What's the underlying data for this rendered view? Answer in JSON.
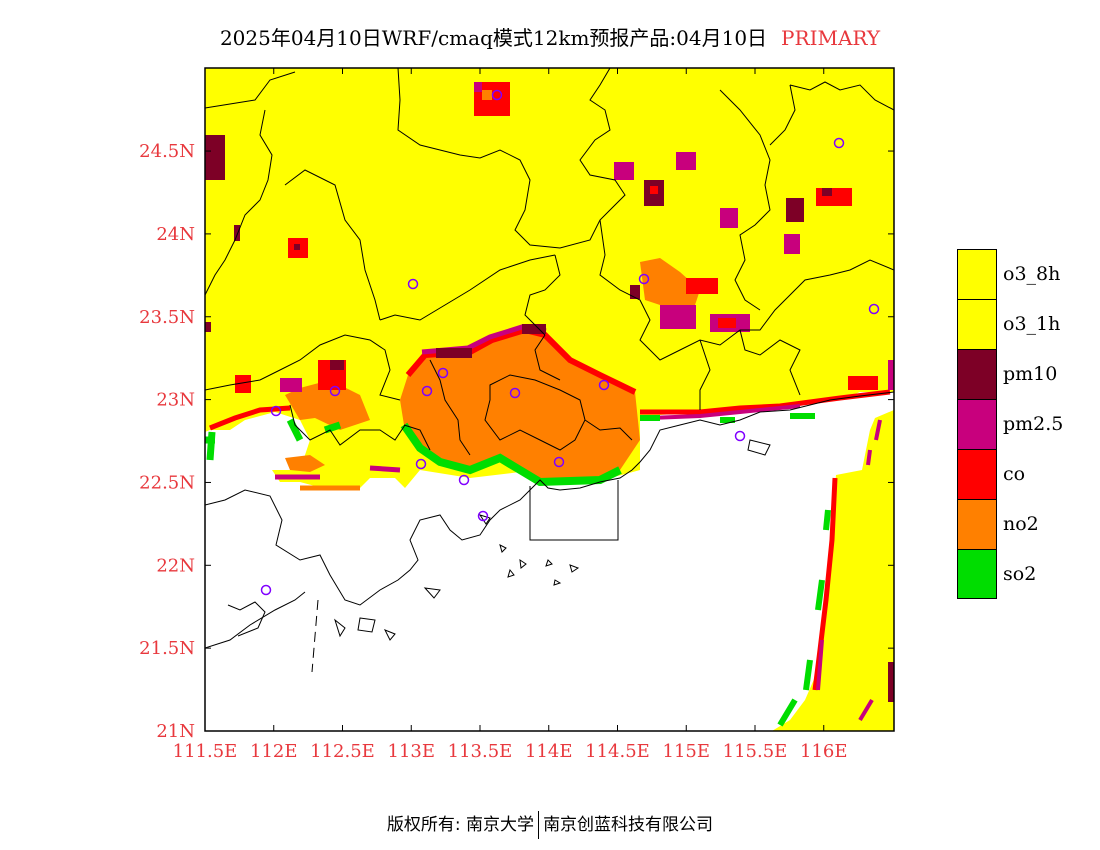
{
  "title": {
    "main": "2025年04月10日WRF/cmaq模式12km预报产品:04月10日",
    "tag": "PRIMARY"
  },
  "axes": {
    "lon_ticks": [
      "111.5E",
      "112E",
      "112.5E",
      "113E",
      "113.5E",
      "114E",
      "114.5E",
      "115E",
      "115.5E",
      "116E"
    ],
    "lat_ticks": [
      "24.5N",
      "24N",
      "23.5N",
      "23N",
      "22.5N",
      "22N",
      "21.5N",
      "21N"
    ],
    "lon_range": [
      111.5,
      116.5
    ],
    "lat_range": [
      21.0,
      25.0
    ],
    "label_color": "#e8383d"
  },
  "legend": [
    {
      "label": "o3_8h",
      "color": "#ffff00"
    },
    {
      "label": "o3_1h",
      "color": "#ffff00"
    },
    {
      "label": "pm10",
      "color": "#7d0026"
    },
    {
      "label": "pm2.5",
      "color": "#c8007d"
    },
    {
      "label": "co",
      "color": "#ff0000"
    },
    {
      "label": "no2",
      "color": "#ff8000"
    },
    {
      "label": "so2",
      "color": "#00dd00"
    }
  ],
  "footer": {
    "left": "版权所有: 南京大学",
    "right": "南京创蓝科技有限公司"
  },
  "map_layers": {
    "background": "#ffffff",
    "land_color": "#ffff00",
    "no2_color": "#ff8000",
    "station_color": "#8000ff"
  }
}
